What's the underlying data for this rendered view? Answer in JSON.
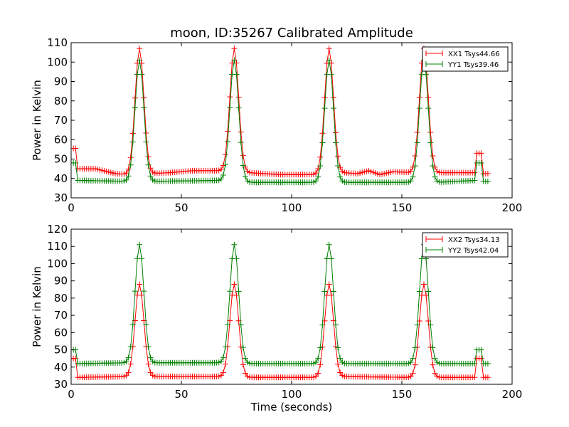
{
  "figure": {
    "title": "moon, ID:35267 Calibrated Amplitude"
  },
  "chart_data": [
    {
      "type": "line",
      "title": "moon, ID:35267 Calibrated Amplitude",
      "xlabel": "",
      "ylabel": "Power in Kelvin",
      "xlim": [
        0,
        200
      ],
      "ylim": [
        30,
        110
      ],
      "xticks": [
        0,
        50,
        100,
        150,
        200
      ],
      "yticks": [
        30,
        40,
        50,
        60,
        70,
        80,
        90,
        100,
        110
      ],
      "xtick_labels": [
        "0",
        "50",
        "100",
        "150",
        "200"
      ],
      "ytick_labels": [
        "30",
        "40",
        "50",
        "60",
        "70",
        "80",
        "90",
        "100",
        "110"
      ],
      "grid": false,
      "legend": "top-right",
      "marker": "+",
      "sample_step": 1,
      "series": [
        {
          "name": "XX1 Tsys44.66",
          "color": "#ff0000",
          "segments": [
            {
              "x": 0,
              "v": 55.5
            },
            {
              "x": 2,
              "v": 55.5
            },
            {
              "x": 3,
              "v": 45
            },
            {
              "x": 11,
              "v": 45
            },
            {
              "x": 20,
              "v": 42.5
            },
            {
              "x": 26,
              "v": 42
            },
            {
              "x": 31,
              "v": 107,
              "peak": 3.2
            },
            {
              "x": 36,
              "v": 42.5
            },
            {
              "x": 45,
              "v": 43
            },
            {
              "x": 55,
              "v": 44
            },
            {
              "x": 68,
              "v": 44
            },
            {
              "x": 74,
              "v": 107,
              "peak": 3.2
            },
            {
              "x": 80,
              "v": 43
            },
            {
              "x": 95,
              "v": 42
            },
            {
              "x": 110,
              "v": 42
            },
            {
              "x": 117,
              "v": 107,
              "peak": 3.2
            },
            {
              "x": 123,
              "v": 43
            },
            {
              "x": 130,
              "v": 42.5
            },
            {
              "x": 135,
              "v": 44
            },
            {
              "x": 140,
              "v": 42
            },
            {
              "x": 146,
              "v": 43.5
            },
            {
              "x": 154,
              "v": 43
            },
            {
              "x": 160,
              "v": 107,
              "peak": 3.2
            },
            {
              "x": 166,
              "v": 43
            },
            {
              "x": 183,
              "v": 43
            },
            {
              "x": 184,
              "v": 53
            },
            {
              "x": 186,
              "v": 53
            },
            {
              "x": 187,
              "v": 42.5
            },
            {
              "x": 189,
              "v": 42.5
            }
          ]
        },
        {
          "name": "YY1 Tsys39.46",
          "color": "#008000",
          "segments": [
            {
              "x": 0,
              "v": 48
            },
            {
              "x": 2,
              "v": 48
            },
            {
              "x": 3,
              "v": 39
            },
            {
              "x": 26,
              "v": 38.5
            },
            {
              "x": 31,
              "v": 101,
              "peak": 3.2
            },
            {
              "x": 36,
              "v": 38.5
            },
            {
              "x": 69,
              "v": 39
            },
            {
              "x": 74,
              "v": 101,
              "peak": 3.2
            },
            {
              "x": 80,
              "v": 38
            },
            {
              "x": 111,
              "v": 38
            },
            {
              "x": 117,
              "v": 101,
              "peak": 3.2
            },
            {
              "x": 123,
              "v": 38
            },
            {
              "x": 154,
              "v": 38
            },
            {
              "x": 160,
              "v": 101,
              "peak": 3.2
            },
            {
              "x": 166,
              "v": 38
            },
            {
              "x": 183,
              "v": 39
            },
            {
              "x": 184,
              "v": 48
            },
            {
              "x": 186,
              "v": 48
            },
            {
              "x": 187,
              "v": 38.5
            },
            {
              "x": 189,
              "v": 38.5
            }
          ]
        }
      ]
    },
    {
      "type": "line",
      "title": "",
      "xlabel": "Time (seconds)",
      "ylabel": "Power in Kelvin",
      "xlim": [
        0,
        200
      ],
      "ylim": [
        30,
        120
      ],
      "xticks": [
        0,
        50,
        100,
        150,
        200
      ],
      "yticks": [
        30,
        40,
        50,
        60,
        70,
        80,
        90,
        100,
        110,
        120
      ],
      "xtick_labels": [
        "0",
        "50",
        "100",
        "150",
        "200"
      ],
      "ytick_labels": [
        "30",
        "40",
        "50",
        "60",
        "70",
        "80",
        "90",
        "100",
        "110",
        "120"
      ],
      "grid": false,
      "legend": "top-right",
      "marker": "+",
      "sample_step": 1,
      "series": [
        {
          "name": "XX2 Tsys34.13",
          "color": "#ff0000",
          "segments": [
            {
              "x": 0,
              "v": 45
            },
            {
              "x": 2,
              "v": 45
            },
            {
              "x": 3,
              "v": 34
            },
            {
              "x": 26,
              "v": 34.5
            },
            {
              "x": 31,
              "v": 88,
              "peak": 3.2
            },
            {
              "x": 36,
              "v": 34.5
            },
            {
              "x": 69,
              "v": 34.5
            },
            {
              "x": 74,
              "v": 88,
              "peak": 3.2
            },
            {
              "x": 80,
              "v": 34
            },
            {
              "x": 111,
              "v": 34
            },
            {
              "x": 117,
              "v": 88,
              "peak": 3.2
            },
            {
              "x": 123,
              "v": 34.5
            },
            {
              "x": 154,
              "v": 34
            },
            {
              "x": 160,
              "v": 88,
              "peak": 3.2
            },
            {
              "x": 166,
              "v": 34
            },
            {
              "x": 183,
              "v": 34
            },
            {
              "x": 184,
              "v": 45
            },
            {
              "x": 186,
              "v": 45
            },
            {
              "x": 187,
              "v": 34
            },
            {
              "x": 189,
              "v": 34
            }
          ]
        },
        {
          "name": "YY2 Tsys42.04",
          "color": "#008000",
          "segments": [
            {
              "x": 0,
              "v": 50
            },
            {
              "x": 2,
              "v": 50
            },
            {
              "x": 3,
              "v": 42
            },
            {
              "x": 26,
              "v": 42.5
            },
            {
              "x": 31,
              "v": 111,
              "peak": 3.2
            },
            {
              "x": 36,
              "v": 42.5
            },
            {
              "x": 69,
              "v": 42.5
            },
            {
              "x": 74,
              "v": 111,
              "peak": 3.2
            },
            {
              "x": 80,
              "v": 42
            },
            {
              "x": 111,
              "v": 42
            },
            {
              "x": 117,
              "v": 111,
              "peak": 3.2
            },
            {
              "x": 123,
              "v": 42
            },
            {
              "x": 154,
              "v": 42
            },
            {
              "x": 160,
              "v": 111,
              "peak": 3.2
            },
            {
              "x": 166,
              "v": 42
            },
            {
              "x": 183,
              "v": 42
            },
            {
              "x": 184,
              "v": 50
            },
            {
              "x": 186,
              "v": 50
            },
            {
              "x": 187,
              "v": 42
            },
            {
              "x": 189,
              "v": 42
            }
          ]
        }
      ]
    }
  ]
}
